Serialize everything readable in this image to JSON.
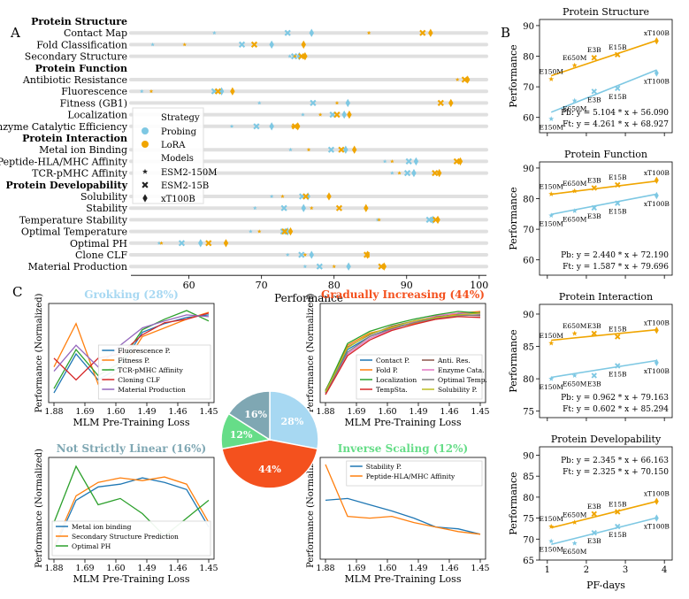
{
  "colors": {
    "probing": "#7ec8e3",
    "lora": "#f0a500",
    "pie_grok": "#a7d8f2",
    "pie_grad": "#f4511e",
    "pie_nsl": "#7fa7b3",
    "pie_inv": "#66dd88"
  },
  "panel_letters": {
    "a": "A",
    "b": "B",
    "c": "C"
  },
  "panelA": {
    "xlabel": "Performance",
    "xticks": [
      60,
      70,
      80,
      90,
      100
    ],
    "xlim": [
      52,
      101
    ],
    "rows": [
      {
        "label": "Protein Structure",
        "header": true
      },
      {
        "label": "Contact Map",
        "p": [
          63.5,
          73.6,
          76.9
        ],
        "l": [
          84.8,
          92.2,
          93.3
        ]
      },
      {
        "label": "Fold Classification",
        "p": [
          55.0,
          67.3,
          71.4
        ],
        "l": [
          59.4,
          69.0,
          75.8
        ]
      },
      {
        "label": "Secondary Structure",
        "p": [
          73.9,
          74.5,
          75.2
        ],
        "l": [
          74.6,
          75.5,
          76.0
        ]
      },
      {
        "label": "Protein Function",
        "header": true
      },
      {
        "label": "Antibiotic Resistance",
        "p": [],
        "l": [
          97.0,
          98.0,
          98.4
        ]
      },
      {
        "label": "Fluorescence",
        "p": [
          53.5,
          63.5,
          64.5
        ],
        "l": [
          54.8,
          64.0,
          66.0
        ]
      },
      {
        "label": "Fitness (GB1)",
        "p": [
          69.7,
          77.1,
          81.9
        ],
        "l": [
          80.4,
          94.7,
          96.1
        ]
      },
      {
        "label": "Localization",
        "p": [
          75.7,
          79.8,
          81.4
        ],
        "l": [
          78.1,
          80.4,
          82.1
        ]
      },
      {
        "label": "Enzyme Catalytic Efficiency",
        "p": [
          65.9,
          69.3,
          71.4
        ],
        "l": [
          74.3,
          74.6,
          75.0
        ]
      },
      {
        "label": "Protein Interaction",
        "header": true
      },
      {
        "label": "Metal ion Binding",
        "p": [
          74.0,
          79.6,
          81.6
        ],
        "l": [
          76.5,
          81.0,
          82.8
        ]
      },
      {
        "label": "Peptide-HLA/MHC Affinity",
        "p": [
          87.0,
          90.3,
          91.3
        ],
        "l": [
          88.0,
          96.9,
          97.4
        ]
      },
      {
        "label": "TCR-pMHC Affinity",
        "p": [
          88.0,
          90.1,
          91.0
        ],
        "l": [
          89.0,
          93.9,
          94.5
        ]
      },
      {
        "label": "Protein Developability",
        "header": true
      },
      {
        "label": "Solubility",
        "p": [
          71.4,
          75.6,
          76.4
        ],
        "l": [
          72.9,
          76.1,
          79.3
        ]
      },
      {
        "label": "Stability",
        "p": [
          69.1,
          73.1,
          75.8
        ],
        "l": [
          76.9,
          80.7,
          84.4
        ]
      },
      {
        "label": "Temperature Stability",
        "p": [
          86.0,
          93.1,
          93.6
        ],
        "l": [
          86.2,
          94.0,
          94.3
        ]
      },
      {
        "label": "Optimal Temperature",
        "p": [
          68.5,
          73.0,
          73.6
        ],
        "l": [
          69.7,
          73.2,
          74.0
        ]
      },
      {
        "label": "Optimal PH",
        "p": [
          55.9,
          59.0,
          61.6
        ],
        "l": [
          56.2,
          62.7,
          65.1
        ]
      },
      {
        "label": "Clone CLF",
        "p": [
          73.6,
          75.5,
          76.9
        ],
        "l": [
          76.0,
          84.5,
          84.6
        ]
      },
      {
        "label": "Material Production",
        "p": [
          76.0,
          78.0,
          82.0
        ],
        "l": [
          80.0,
          86.5,
          86.9
        ]
      }
    ],
    "legend": {
      "strategy_title": "Strategy",
      "probing": "Probing",
      "lora": "LoRA",
      "models_title": "Models",
      "m1": "ESM2-150M",
      "m2": "ESM2-15B",
      "m3": "xT100B"
    }
  },
  "panelB": {
    "xlabel": "PF-days",
    "ylabel": "Performance",
    "xticks": [
      1,
      2,
      3,
      4
    ],
    "xlim": [
      0.8,
      4.2
    ],
    "model_labels": [
      "E150M",
      "E650M",
      "E3B",
      "E15B",
      "xT100B"
    ],
    "x_values": [
      1.1,
      1.7,
      2.2,
      2.8,
      3.8
    ],
    "subplots": [
      {
        "title": "Protein Structure",
        "ylim": [
          55,
          92
        ],
        "yticks": [
          60,
          70,
          80,
          90
        ],
        "pb": [
          59.5,
          65.5,
          68.5,
          69.5,
          74.5
        ],
        "ft": [
          72.5,
          77.0,
          79.5,
          80.5,
          85.0
        ],
        "pb_slope": 5.104,
        "pb_int": 56.09,
        "ft_slope": 4.261,
        "ft_int": 68.927,
        "eq_pb": "Pb: y = 5.104 * x + 56.090",
        "eq_ft": "Ft: y = 4.261 * x + 68.927",
        "eq_pos": "bottom"
      },
      {
        "title": "Protein Function",
        "ylim": [
          55,
          92
        ],
        "yticks": [
          60,
          70,
          80,
          90
        ],
        "pb": [
          74.5,
          76.0,
          77.0,
          78.5,
          81.0
        ],
        "ft": [
          81.5,
          82.5,
          83.5,
          84.5,
          86.0
        ],
        "pb_slope": 2.44,
        "pb_int": 72.19,
        "ft_slope": 1.587,
        "ft_int": 79.696,
        "eq_pb": "Pb: y = 2.440 * x + 72.190",
        "eq_ft": "Ft: y = 1.587 * x + 79.696",
        "eq_pos": "bottom"
      },
      {
        "title": "Protein Interaction",
        "ylim": [
          74,
          91.5
        ],
        "yticks": [
          75,
          80,
          85,
          90
        ],
        "pb": [
          80.0,
          80.5,
          80.5,
          82.0,
          82.5
        ],
        "ft": [
          85.5,
          87.0,
          87.0,
          86.5,
          87.5
        ],
        "pb_slope": 0.962,
        "pb_int": 79.163,
        "ft_slope": 0.602,
        "ft_int": 85.294,
        "eq_pb": "Pb: y = 0.962 * x + 79.163",
        "eq_ft": "Ft: y = 0.602 * x + 85.294",
        "eq_pos": "bottom"
      },
      {
        "title": "Protein Developability",
        "ylim": [
          65,
          92
        ],
        "yticks": [
          65,
          70,
          75,
          80,
          85,
          90
        ],
        "pb": [
          69.5,
          69.0,
          71.5,
          73.0,
          75.0
        ],
        "ft": [
          73.0,
          74.0,
          76.0,
          76.5,
          79.0
        ],
        "pb_slope": 2.345,
        "pb_int": 66.163,
        "ft_slope": 2.325,
        "ft_int": 70.15,
        "eq_pb": "Pb: y = 2.345 * x + 66.163",
        "eq_ft": "Ft: y = 2.325 * x + 70.150",
        "eq_pos": "top"
      }
    ]
  },
  "panelC": {
    "xlabel": "MLM Pre-Training Loss",
    "ylabel": "Performance (Normalized)",
    "xticks": [
      "1.88",
      "1.69",
      "1.60",
      "1.49",
      "1.46",
      "1.45"
    ],
    "pie": [
      {
        "label": "28%",
        "value": 28,
        "color": "#a7d8f2"
      },
      {
        "label": "44%",
        "value": 44,
        "color": "#f4511e"
      },
      {
        "label": "12%",
        "value": 12,
        "color": "#66dd88"
      },
      {
        "label": "16%",
        "value": 16,
        "color": "#7fa7b3"
      }
    ],
    "subplots": [
      {
        "title": "Grokking (28%)",
        "title_color": "#a7d8f2",
        "series": [
          {
            "name": "Fluorescence P.",
            "color": "#1f77b4",
            "values": [
              0.05,
              0.5,
              0.2,
              0.35,
              0.75,
              0.85,
              0.92,
              0.95
            ]
          },
          {
            "name": "Fitness P.",
            "color": "#ff7f0e",
            "values": [
              0.35,
              0.85,
              0.15,
              0.3,
              0.7,
              0.8,
              0.9,
              0.98
            ]
          },
          {
            "name": "TCR-pMHC Affinity",
            "color": "#2ca02c",
            "values": [
              0.1,
              0.55,
              0.25,
              0.4,
              0.78,
              0.9,
              1.0,
              0.88
            ]
          },
          {
            "name": "Cloning CLF",
            "color": "#d62728",
            "values": [
              0.45,
              0.2,
              0.45,
              0.5,
              0.72,
              0.86,
              0.9,
              0.97
            ]
          },
          {
            "name": "Material Production",
            "color": "#9467bd",
            "values": [
              0.3,
              0.6,
              0.35,
              0.6,
              0.8,
              0.88,
              0.95,
              0.93
            ]
          }
        ]
      },
      {
        "title": "Gradually Increasing (44%)",
        "title_color": "#f4511e",
        "series": [
          {
            "name": "Contact P.",
            "color": "#1f77b4",
            "values": [
              0.05,
              0.55,
              0.7,
              0.8,
              0.86,
              0.92,
              0.96,
              0.98
            ]
          },
          {
            "name": "Anti. Res.",
            "color": "#8c564b",
            "values": [
              0.08,
              0.58,
              0.72,
              0.82,
              0.88,
              0.93,
              0.95,
              0.94
            ]
          },
          {
            "name": "Fold P.",
            "color": "#ff7f0e",
            "values": [
              0.06,
              0.6,
              0.74,
              0.8,
              0.85,
              0.9,
              0.97,
              0.99
            ]
          },
          {
            "name": "Enzyme Cata.",
            "color": "#e377c2",
            "values": [
              0.04,
              0.5,
              0.68,
              0.78,
              0.87,
              0.94,
              0.97,
              0.96
            ]
          },
          {
            "name": "Localization",
            "color": "#2ca02c",
            "values": [
              0.07,
              0.62,
              0.76,
              0.84,
              0.9,
              0.95,
              0.99,
              0.97
            ]
          },
          {
            "name": "Optimal Temp.",
            "color": "#7f7f7f",
            "values": [
              0.05,
              0.52,
              0.7,
              0.79,
              0.86,
              0.91,
              0.94,
              0.95
            ]
          },
          {
            "name": "TempSta.",
            "color": "#d62728",
            "values": [
              0.03,
              0.48,
              0.66,
              0.77,
              0.84,
              0.9,
              0.93,
              0.92
            ]
          },
          {
            "name": "Solubility P.",
            "color": "#bcbd22",
            "values": [
              0.06,
              0.57,
              0.73,
              0.81,
              0.88,
              0.92,
              0.95,
              0.97
            ]
          }
        ]
      },
      {
        "title": "Not Strictly Linear (16%)",
        "title_color": "#7fa7b3",
        "series": [
          {
            "name": "Metal ion binding",
            "color": "#1f77b4",
            "values": [
              0.05,
              0.6,
              0.75,
              0.78,
              0.85,
              0.8,
              0.72,
              0.3
            ]
          },
          {
            "name": "Secondary Structure Prediction",
            "color": "#ff7f0e",
            "values": [
              0.08,
              0.65,
              0.8,
              0.85,
              0.82,
              0.86,
              0.78,
              0.35
            ]
          },
          {
            "name": "Optimal PH",
            "color": "#2ca02c",
            "values": [
              0.35,
              0.98,
              0.55,
              0.62,
              0.45,
              0.2,
              0.4,
              0.6
            ]
          }
        ]
      },
      {
        "title": "Inverse Scaling (12%)",
        "title_color": "#66dd88",
        "series": [
          {
            "name": "Stability P.",
            "color": "#1f77b4",
            "values": [
              0.6,
              0.62,
              0.55,
              0.48,
              0.4,
              0.3,
              0.28,
              0.22
            ]
          },
          {
            "name": "Peptide-HLA/MHC Affinity",
            "color": "#ff7f0e",
            "values": [
              1.0,
              0.42,
              0.4,
              0.42,
              0.35,
              0.3,
              0.25,
              0.22
            ]
          }
        ]
      }
    ]
  }
}
